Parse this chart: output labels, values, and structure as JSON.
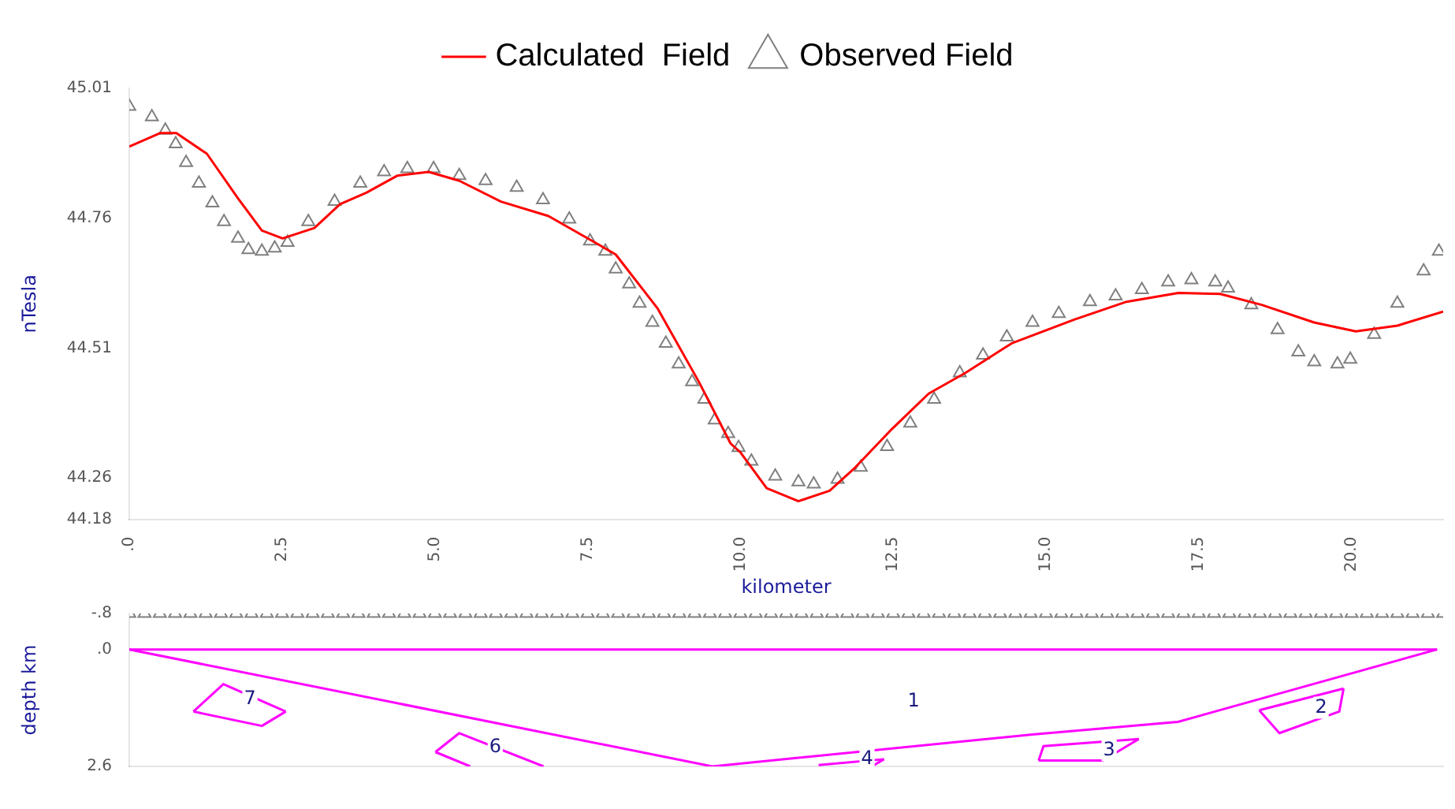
{
  "chart_data": [
    {
      "type": "line",
      "xlabel": "kilometer",
      "ylabel": "nTesla",
      "legend": "top",
      "grid": false,
      "xlim": [
        0,
        21.5
      ],
      "xticks": [
        {
          "value": 0,
          "label": ".0"
        },
        2.5,
        {
          "value": 5,
          "label": "5.0"
        },
        7.5,
        {
          "value": 10,
          "label": "10.0"
        },
        12.5,
        {
          "value": 15,
          "label": "15.0"
        },
        17.5,
        {
          "value": 20,
          "label": "20.0"
        }
      ],
      "ylim": [
        44.18,
        45.01
      ],
      "yticks": [
        44.18,
        44.26,
        44.51,
        44.76,
        45.01
      ],
      "series": [
        {
          "name": "Calculated  Field",
          "type": "line",
          "marker": "none",
          "color": "#ff0000",
          "x": [
            0,
            0.51,
            0.77,
            1.27,
            1.78,
            2.17,
            2.51,
            3.03,
            3.45,
            3.88,
            4.39,
            4.9,
            5.4,
            6.08,
            6.86,
            7.71,
            7.96,
            8.64,
            9.32,
            9.84,
            10.0,
            10.43,
            10.95,
            11.46,
            11.88,
            12.48,
            13.08,
            13.68,
            14.44,
            15.47,
            16.32,
            17.17,
            17.85,
            18.53,
            19.39,
            20.07,
            20.75,
            21.5
          ],
          "values": [
            44.898,
            44.924,
            44.924,
            44.884,
            44.798,
            44.736,
            44.721,
            44.741,
            44.787,
            44.809,
            44.842,
            44.849,
            44.832,
            44.792,
            44.764,
            44.707,
            44.69,
            44.587,
            44.445,
            44.326,
            44.309,
            44.24,
            44.215,
            44.235,
            44.28,
            44.354,
            44.422,
            44.462,
            44.519,
            44.565,
            44.599,
            44.616,
            44.614,
            44.593,
            44.559,
            44.542,
            44.553,
            44.58
          ]
        },
        {
          "name": "Observed Field",
          "type": "scatter",
          "marker": "triangle",
          "color": "#808080",
          "x": [
            0,
            0.37,
            0.59,
            0.76,
            0.93,
            1.14,
            1.36,
            1.55,
            1.78,
            1.95,
            2.17,
            2.38,
            2.59,
            2.93,
            3.36,
            3.78,
            4.17,
            4.55,
            4.98,
            5.4,
            5.83,
            6.34,
            6.77,
            7.2,
            7.54,
            7.79,
            7.96,
            8.18,
            8.35,
            8.56,
            8.78,
            8.99,
            9.21,
            9.41,
            9.58,
            9.8,
            9.97,
            10.18,
            10.57,
            10.95,
            11.2,
            11.59,
            11.97,
            12.4,
            12.78,
            13.17,
            13.59,
            13.97,
            14.36,
            14.78,
            15.21,
            15.72,
            16.14,
            16.57,
            17.0,
            17.38,
            17.77,
            17.98,
            18.36,
            18.79,
            19.13,
            19.39,
            19.77,
            19.98,
            20.37,
            20.75,
            21.18,
            21.43
          ],
          "values": [
            44.975,
            44.955,
            44.929,
            44.903,
            44.867,
            44.827,
            44.789,
            44.753,
            44.721,
            44.699,
            44.696,
            44.702,
            44.713,
            44.753,
            44.792,
            44.827,
            44.849,
            44.855,
            44.855,
            44.842,
            44.832,
            44.819,
            44.795,
            44.758,
            44.716,
            44.696,
            44.662,
            44.633,
            44.596,
            44.559,
            44.519,
            44.479,
            44.445,
            44.411,
            44.371,
            44.345,
            44.318,
            44.292,
            44.263,
            44.252,
            44.248,
            44.257,
            44.28,
            44.32,
            44.365,
            44.411,
            44.462,
            44.496,
            44.531,
            44.559,
            44.576,
            44.599,
            44.61,
            44.622,
            44.637,
            44.641,
            44.637,
            44.625,
            44.593,
            44.545,
            44.502,
            44.483,
            44.479,
            44.488,
            44.536,
            44.596,
            44.658,
            44.696
          ]
        }
      ]
    },
    {
      "type": "line",
      "ylabel": "depth km",
      "legend": false,
      "grid": false,
      "tick_labels": "y",
      "xlim": [
        0,
        21.5
      ],
      "ylim": [
        2.6,
        -0.8
      ],
      "yticks": [
        {
          "value": -0.8,
          "label": "-.8"
        },
        {
          "value": 0,
          "label": ".0"
        },
        {
          "value": 2.6,
          "label": "2.6"
        }
      ],
      "series": [
        {
          "type": "scatter",
          "marker": "triangle",
          "color": "#808080",
          "x": [
            0,
            0.25,
            0.5,
            0.75,
            1,
            1.25,
            1.5,
            1.75,
            2,
            2.25,
            2.5,
            2.75,
            3,
            3.25,
            3.5,
            3.75,
            4,
            4.25,
            4.5,
            4.75,
            5,
            5.25,
            5.5,
            5.75,
            6,
            6.25,
            6.5,
            6.75,
            7,
            7.25,
            7.5,
            7.75,
            8,
            8.25,
            8.5,
            8.75,
            9,
            9.25,
            9.5,
            9.75,
            10,
            10.25,
            10.5,
            10.75,
            11,
            11.25,
            11.5,
            11.75,
            12,
            12.25,
            12.5,
            12.75,
            13,
            13.25,
            13.5,
            13.75,
            14,
            14.25,
            14.5,
            14.75,
            15,
            15.25,
            15.5,
            15.75,
            16,
            16.25,
            16.5,
            16.75,
            17,
            17.25,
            17.5,
            17.75,
            18,
            18.25,
            18.5,
            18.75,
            19,
            19.25,
            19.5,
            19.75,
            20,
            20.25,
            20.5,
            20.75,
            21,
            21.25,
            21.5
          ],
          "values": [
            -0.8,
            -0.8,
            -0.8,
            -0.8,
            -0.8,
            -0.8,
            -0.8,
            -0.8,
            -0.8,
            -0.8,
            -0.8,
            -0.8,
            -0.8,
            -0.8,
            -0.8,
            -0.8,
            -0.8,
            -0.8,
            -0.8,
            -0.8,
            -0.8,
            -0.8,
            -0.8,
            -0.8,
            -0.8,
            -0.8,
            -0.8,
            -0.8,
            -0.8,
            -0.8,
            -0.8,
            -0.8,
            -0.8,
            -0.8,
            -0.8,
            -0.8,
            -0.8,
            -0.8,
            -0.8,
            -0.8,
            -0.8,
            -0.8,
            -0.8,
            -0.8,
            -0.8,
            -0.8,
            -0.8,
            -0.8,
            -0.8,
            -0.8,
            -0.8,
            -0.8,
            -0.8,
            -0.8,
            -0.8,
            -0.8,
            -0.8,
            -0.8,
            -0.8,
            -0.8,
            -0.8,
            -0.8,
            -0.8,
            -0.8,
            -0.8,
            -0.8,
            -0.8,
            -0.8,
            -0.8,
            -0.8,
            -0.8,
            -0.8,
            -0.8,
            -0.8,
            -0.8,
            -0.8,
            -0.8,
            -0.8,
            -0.8,
            -0.8,
            -0.8,
            -0.8,
            -0.8,
            -0.8,
            -0.8,
            -0.8,
            -0.8
          ]
        },
        {
          "type": "line",
          "marker": "none",
          "color": "#ff00ff",
          "x": [
            0,
            21.4
          ],
          "values": [
            0,
            0
          ]
        },
        {
          "name": "1",
          "type": "line",
          "marker": "none",
          "color": "#ff00ff",
          "x": [
            0,
            9.54,
            14.78,
            17.16,
            21.4
          ],
          "values": [
            0,
            2.6,
            1.89,
            1.61,
            0
          ]
        },
        {
          "type": "line",
          "marker": "none",
          "color": "#ff00ff",
          "x": [
            18.49,
            19.87
          ],
          "values": [
            1.35,
            0.87
          ]
        },
        {
          "name": "2",
          "type": "line",
          "marker": "none",
          "color": "#ff00ff",
          "x": [
            18.49,
            18.82,
            19.8,
            19.87
          ],
          "values": [
            1.35,
            1.86,
            1.38,
            0.87
          ]
        },
        {
          "type": "line",
          "marker": "none",
          "color": "#ff00ff",
          "x": [
            14.88,
            14.96,
            16.52
          ],
          "values": [
            2.47,
            2.15,
            1.99
          ]
        },
        {
          "name": "3",
          "type": "line",
          "marker": "none",
          "color": "#ff00ff",
          "x": [
            14.88,
            15.93,
            16.52
          ],
          "values": [
            2.47,
            2.47,
            1.99
          ]
        },
        {
          "type": "line",
          "marker": "none",
          "color": "#ff00ff",
          "x": [
            12.15,
            12.35
          ],
          "values": [
            2.6,
            2.44
          ]
        },
        {
          "name": "4",
          "type": "line",
          "marker": "none",
          "color": "#ff00ff",
          "x": [
            11.28,
            12.35
          ],
          "values": [
            2.57,
            2.44
          ]
        },
        {
          "type": "line",
          "marker": "none",
          "color": "#ff00ff",
          "x": [
            5.01,
            5.58
          ],
          "values": [
            2.28,
            2.6
          ]
        },
        {
          "name": "6",
          "type": "line",
          "marker": "none",
          "color": "#ff00ff",
          "x": [
            5.01,
            5.4,
            6.78
          ],
          "values": [
            2.28,
            1.86,
            2.6
          ]
        },
        {
          "type": "line",
          "marker": "none",
          "color": "#ff00ff",
          "x": [
            1.05,
            2.17,
            2.56
          ],
          "values": [
            1.38,
            1.7,
            1.38
          ]
        },
        {
          "name": "7",
          "type": "line",
          "marker": "none",
          "color": "#ff00ff",
          "x": [
            1.05,
            1.54,
            2.56
          ],
          "values": [
            1.38,
            0.77,
            1.38
          ]
        }
      ]
    }
  ]
}
